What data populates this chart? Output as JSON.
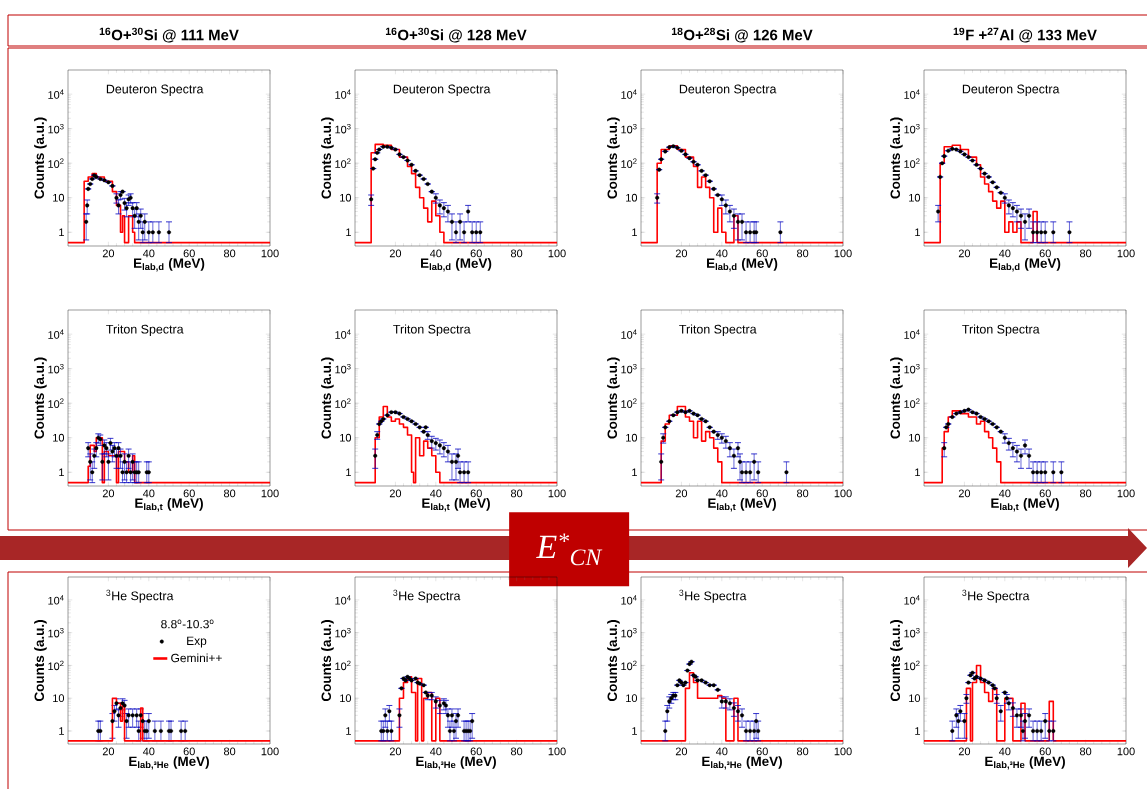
{
  "chart_data": [
    {
      "type": "scatter",
      "title": "$^{16}$O+$^{30}$Si @ 111 MeV",
      "subtitle": "Deuteron Spectra",
      "xlabel": "E$_{lab,d}$ (MeV)",
      "ylabel": "Counts (a.u.)",
      "log": "y",
      "xlim": [
        0,
        100
      ],
      "ylim": [
        0.4,
        50000
      ],
      "xticks": [
        20,
        40,
        60,
        80,
        100
      ],
      "yticks": [
        1,
        10,
        {
          "value": 100,
          "label": "10$^{2}$"
        },
        {
          "value": 1000,
          "label": "10$^{3}$"
        },
        {
          "value": 10000,
          "label": "10$^{4}$"
        }
      ],
      "series": [
        {
          "type": "step",
          "marker": "none",
          "color": "#ff0000",
          "x": [
            0,
            8,
            10,
            12,
            14,
            18,
            22,
            24,
            26,
            27,
            28,
            30,
            32,
            33,
            100
          ],
          "values": [
            0.5,
            30,
            40,
            50,
            40,
            30,
            15,
            6,
            1,
            3,
            0.5,
            3,
            1,
            0.5,
            0.5
          ]
        },
        {
          "type": "scatter",
          "marker": "circle",
          "color": "#000000",
          "x": [
            9,
            9.5,
            10,
            11,
            12,
            13,
            14,
            16,
            18,
            20,
            22,
            24,
            25,
            26,
            27,
            28,
            29,
            30,
            31,
            32,
            33,
            34,
            35,
            36,
            37,
            38,
            40,
            42,
            45,
            50
          ],
          "values": [
            2,
            6,
            18,
            25,
            35,
            45,
            40,
            35,
            32,
            28,
            22,
            10,
            6,
            12,
            15,
            7,
            5,
            9,
            10,
            5,
            3,
            5,
            2,
            3,
            1,
            2,
            1,
            1,
            1,
            1
          ],
          "errors": [
            1.4,
            2.6,
            null,
            null,
            null,
            null,
            null,
            null,
            null,
            null,
            null,
            3,
            2.6,
            3,
            null,
            2.6,
            2.2,
            3,
            3,
            2.2,
            1.7,
            2.2,
            1.4,
            1.7,
            [
              0.5,
              2
            ],
            1.4,
            [
              0.5,
              2
            ],
            [
              0.5,
              2
            ],
            [
              0.5,
              2
            ],
            [
              0.5,
              2
            ]
          ]
        }
      ]
    },
    {
      "type": "scatter",
      "title": "$^{16}$O+$^{30}$Si @ 128 MeV",
      "subtitle": "Deuteron Spectra",
      "xlabel": "E$_{lab,d}$ (MeV)",
      "ylabel": "Counts (a.u.)",
      "log": "y",
      "xlim": [
        0,
        100
      ],
      "ylim": [
        0.4,
        50000
      ],
      "xticks": [
        20,
        40,
        60,
        80,
        100
      ],
      "yticks": [
        1,
        10,
        {
          "value": 100,
          "label": "10$^{2}$"
        },
        {
          "value": 1000,
          "label": "10$^{3}$"
        },
        {
          "value": 10000,
          "label": "10$^{4}$"
        }
      ],
      "series": [
        {
          "type": "step",
          "marker": "none",
          "color": "#ff0000",
          "x": [
            0,
            8,
            10,
            14,
            18,
            22,
            26,
            28,
            30,
            32,
            34,
            36,
            38,
            40,
            42,
            44,
            100
          ],
          "values": [
            0.5,
            200,
            350,
            330,
            250,
            150,
            80,
            50,
            20,
            10,
            5,
            2,
            8,
            3,
            1,
            0.5,
            0.5
          ]
        },
        {
          "type": "scatter",
          "marker": "circle",
          "color": "#000000",
          "x": [
            8,
            9,
            10,
            11,
            12,
            14,
            16,
            18,
            20,
            22,
            24,
            26,
            28,
            30,
            32,
            34,
            36,
            38,
            40,
            42,
            44,
            46,
            48,
            50,
            52,
            54,
            56,
            58,
            60,
            62
          ],
          "values": [
            9,
            70,
            130,
            200,
            250,
            300,
            300,
            280,
            250,
            180,
            150,
            120,
            90,
            60,
            45,
            35,
            25,
            15,
            10,
            6,
            5,
            4,
            2,
            1,
            2,
            1,
            4,
            1,
            1,
            1
          ],
          "errors": [
            3,
            null,
            null,
            null,
            null,
            null,
            null,
            null,
            null,
            null,
            null,
            null,
            null,
            null,
            null,
            null,
            null,
            null,
            3,
            2.6,
            2.2,
            2,
            1.4,
            [
              0.5,
              2
            ],
            1.4,
            [
              0.5,
              2
            ],
            2,
            [
              0.5,
              2
            ],
            [
              0.5,
              2
            ],
            [
              0.5,
              2
            ]
          ]
        }
      ]
    },
    {
      "type": "scatter",
      "title": "$^{18}$O+$^{28}$Si @ 126 MeV",
      "subtitle": "Deuteron Spectra",
      "xlabel": "E$_{lab,d}$ (MeV)",
      "ylabel": "Counts (a.u.)",
      "log": "y",
      "xlim": [
        0,
        100
      ],
      "ylim": [
        0.4,
        50000
      ],
      "xticks": [
        20,
        40,
        60,
        80,
        100
      ],
      "yticks": [
        1,
        10,
        {
          "value": 100,
          "label": "10$^{2}$"
        },
        {
          "value": 1000,
          "label": "10$^{3}$"
        },
        {
          "value": 10000,
          "label": "10$^{4}$"
        }
      ],
      "series": [
        {
          "type": "step",
          "marker": "none",
          "color": "#ff0000",
          "x": [
            0,
            8,
            10,
            14,
            18,
            22,
            26,
            28,
            30,
            32,
            34,
            36,
            38,
            40,
            42,
            46,
            48,
            100
          ],
          "values": [
            0.5,
            100,
            250,
            320,
            250,
            150,
            80,
            20,
            40,
            20,
            10,
            1,
            5,
            1,
            0.5,
            3,
            0.5,
            0.5
          ]
        },
        {
          "type": "scatter",
          "marker": "circle",
          "color": "#000000",
          "x": [
            8,
            9,
            10,
            12,
            14,
            16,
            18,
            20,
            22,
            24,
            26,
            28,
            30,
            32,
            34,
            36,
            38,
            40,
            42,
            44,
            46,
            48,
            50,
            52,
            54,
            56,
            57,
            69
          ],
          "values": [
            10,
            65,
            130,
            220,
            290,
            310,
            280,
            230,
            180,
            140,
            110,
            90,
            60,
            45,
            30,
            18,
            12,
            9,
            6,
            4,
            3,
            2,
            2,
            1,
            1,
            1,
            1,
            1
          ],
          "errors": [
            3,
            null,
            null,
            null,
            null,
            null,
            null,
            null,
            null,
            null,
            null,
            null,
            null,
            null,
            null,
            null,
            null,
            3,
            2.6,
            2,
            1.7,
            1.4,
            1.4,
            [
              0.5,
              2
            ],
            [
              0.5,
              2
            ],
            [
              0.5,
              2
            ],
            [
              0.5,
              2
            ],
            [
              0.5,
              2
            ]
          ]
        }
      ]
    },
    {
      "type": "scatter",
      "title": "$^{19}$F +$^{27}$Al @ 133 MeV",
      "subtitle": "Deuteron Spectra",
      "xlabel": "E$_{lab,d}$ (MeV)",
      "ylabel": "Counts (a.u.)",
      "log": "y",
      "xlim": [
        0,
        100
      ],
      "ylim": [
        0.4,
        50000
      ],
      "xticks": [
        20,
        40,
        60,
        80,
        100
      ],
      "yticks": [
        1,
        10,
        {
          "value": 100,
          "label": "10$^{2}$"
        },
        {
          "value": 1000,
          "label": "10$^{3}$"
        },
        {
          "value": 10000,
          "label": "10$^{4}$"
        }
      ],
      "series": [
        {
          "type": "step",
          "marker": "none",
          "color": "#ff0000",
          "x": [
            0,
            8,
            10,
            14,
            18,
            22,
            26,
            28,
            30,
            32,
            34,
            36,
            38,
            40,
            42,
            44,
            46,
            48,
            54,
            56,
            100
          ],
          "values": [
            0.5,
            100,
            300,
            330,
            250,
            150,
            90,
            40,
            25,
            15,
            8,
            5,
            8,
            1,
            2,
            1,
            2,
            0.5,
            4,
            0.5,
            0.5
          ]
        },
        {
          "type": "scatter",
          "marker": "circle",
          "color": "#000000",
          "x": [
            7,
            8,
            9,
            10,
            12,
            14,
            16,
            18,
            20,
            22,
            24,
            26,
            28,
            30,
            32,
            34,
            36,
            38,
            40,
            42,
            44,
            46,
            48,
            50,
            52,
            54,
            56,
            58,
            60,
            64,
            72
          ],
          "values": [
            4,
            40,
            100,
            160,
            230,
            260,
            250,
            220,
            180,
            150,
            120,
            90,
            70,
            50,
            40,
            28,
            20,
            14,
            10,
            6,
            5,
            4,
            3,
            2,
            3,
            1,
            1,
            1,
            1,
            1,
            1
          ],
          "errors": [
            2,
            null,
            null,
            null,
            null,
            null,
            null,
            null,
            null,
            null,
            null,
            null,
            null,
            null,
            null,
            null,
            null,
            null,
            3,
            2.6,
            2.2,
            2,
            1.7,
            1.4,
            1.7,
            [
              0.5,
              2
            ],
            [
              0.5,
              2
            ],
            [
              0.5,
              2
            ],
            [
              0.5,
              2
            ],
            [
              0.5,
              2
            ],
            [
              0.5,
              2
            ]
          ]
        }
      ]
    },
    {
      "type": "scatter",
      "subtitle": "Triton Spectra",
      "xlabel": "E$_{lab,t}$ (MeV)",
      "ylabel": "Counts (a.u.)",
      "log": "y",
      "xlim": [
        0,
        100
      ],
      "ylim": [
        0.4,
        50000
      ],
      "xticks": [
        20,
        40,
        60,
        80,
        100
      ],
      "yticks": [
        1,
        10,
        {
          "value": 100,
          "label": "10$^{2}$"
        },
        {
          "value": 1000,
          "label": "10$^{3}$"
        },
        {
          "value": 10000,
          "label": "10$^{4}$"
        }
      ],
      "series": [
        {
          "type": "step",
          "marker": "none",
          "color": "#ff0000",
          "x": [
            0,
            10,
            11,
            13,
            14,
            17,
            18,
            20,
            24,
            25,
            28,
            30,
            32,
            33,
            100
          ],
          "values": [
            0.5,
            1.5,
            6,
            4,
            10,
            0.5,
            4,
            3,
            0.5,
            4,
            2,
            1,
            3,
            0.5,
            0.5
          ]
        },
        {
          "type": "scatter",
          "marker": "circle",
          "color": "#000000",
          "x": [
            10,
            11,
            12,
            13,
            14,
            15,
            16,
            17,
            18,
            19,
            20,
            21,
            22,
            23,
            24,
            25,
            26,
            27,
            28,
            29,
            30,
            31,
            32,
            33,
            34,
            35,
            39,
            40
          ],
          "values": [
            5,
            2,
            1,
            3,
            5,
            10,
            9,
            2,
            6,
            5,
            2,
            7,
            4,
            5,
            3,
            5,
            3,
            1,
            2,
            1,
            3,
            1,
            2,
            1,
            1,
            1,
            1,
            1
          ],
          "errors": [
            2.2,
            1.4,
            [
              0.5,
              2
            ],
            1.7,
            2.2,
            3,
            3,
            1.4,
            2.6,
            2.2,
            1.4,
            2.6,
            2,
            2.2,
            1.7,
            2.2,
            1.7,
            [
              0.5,
              2
            ],
            1.4,
            [
              0.5,
              2
            ],
            1.7,
            [
              0.5,
              2
            ],
            1.4,
            [
              0.5,
              2
            ],
            [
              0.5,
              2
            ],
            [
              0.5,
              2
            ],
            [
              0.5,
              2
            ],
            [
              0.5,
              2
            ]
          ]
        }
      ]
    },
    {
      "type": "scatter",
      "subtitle": "Triton Spectra",
      "xlabel": "E$_{lab,t}$ (MeV)",
      "ylabel": "Counts (a.u.)",
      "log": "y",
      "xlim": [
        0,
        100
      ],
      "ylim": [
        0.4,
        50000
      ],
      "xticks": [
        20,
        40,
        60,
        80,
        100
      ],
      "yticks": [
        1,
        10,
        {
          "value": 100,
          "label": "10$^{2}$"
        },
        {
          "value": 1000,
          "label": "10$^{3}$"
        },
        {
          "value": 10000,
          "label": "10$^{4}$"
        }
      ],
      "annotations": [
        "E$^{*}$$_{CN}$"
      ],
      "series": [
        {
          "type": "step",
          "marker": "none",
          "color": "#ff0000",
          "x": [
            0,
            10,
            12,
            14,
            16,
            18,
            20,
            22,
            24,
            26,
            28,
            29,
            30,
            32,
            34,
            36,
            38,
            40,
            42,
            100
          ],
          "values": [
            0.5,
            10,
            40,
            80,
            40,
            30,
            35,
            25,
            20,
            12,
            1,
            0.5,
            10,
            3,
            8,
            5,
            3,
            1,
            0.5,
            0.5
          ]
        },
        {
          "type": "scatter",
          "marker": "circle",
          "color": "#000000",
          "x": [
            10,
            11,
            12,
            13,
            14,
            16,
            18,
            20,
            22,
            24,
            26,
            28,
            30,
            32,
            34,
            35,
            36,
            38,
            40,
            42,
            44,
            46,
            48,
            50,
            51,
            52,
            54,
            56
          ],
          "values": [
            3,
            12,
            25,
            30,
            35,
            45,
            55,
            55,
            50,
            40,
            35,
            30,
            25,
            20,
            15,
            20,
            12,
            8,
            7,
            6,
            5,
            4,
            2,
            2,
            3,
            1,
            1,
            1
          ],
          "errors": [
            1.7,
            3,
            null,
            null,
            null,
            null,
            null,
            null,
            null,
            null,
            null,
            null,
            null,
            null,
            null,
            null,
            3,
            3,
            2.6,
            2.6,
            2.2,
            2,
            1.4,
            1.4,
            1.7,
            [
              0.5,
              2
            ],
            [
              0.5,
              2
            ],
            [
              0.5,
              2
            ]
          ]
        }
      ]
    },
    {
      "type": "scatter",
      "subtitle": "Triton Spectra",
      "xlabel": "E$_{lab,t}$ (MeV)",
      "ylabel": "Counts (a.u.)",
      "log": "y",
      "xlim": [
        0,
        100
      ],
      "ylim": [
        0.4,
        50000
      ],
      "xticks": [
        20,
        40,
        60,
        80,
        100
      ],
      "yticks": [
        1,
        10,
        {
          "value": 100,
          "label": "10$^{2}$"
        },
        {
          "value": 1000,
          "label": "10$^{3}$"
        },
        {
          "value": 10000,
          "label": "10$^{4}$"
        }
      ],
      "series": [
        {
          "type": "step",
          "marker": "none",
          "color": "#ff0000",
          "x": [
            0,
            10,
            12,
            14,
            18,
            22,
            24,
            26,
            28,
            30,
            32,
            34,
            36,
            38,
            40,
            100
          ],
          "values": [
            0.5,
            8,
            25,
            45,
            80,
            40,
            30,
            10,
            30,
            8,
            15,
            10,
            5,
            2,
            0.5,
            0.5
          ]
        },
        {
          "type": "scatter",
          "marker": "circle",
          "color": "#000000",
          "x": [
            10,
            11,
            12,
            14,
            16,
            18,
            20,
            22,
            24,
            26,
            28,
            30,
            32,
            34,
            36,
            38,
            40,
            42,
            44,
            46,
            48,
            49,
            50,
            52,
            54,
            56,
            58,
            72
          ],
          "values": [
            2,
            10,
            20,
            30,
            45,
            55,
            60,
            55,
            60,
            50,
            45,
            35,
            30,
            20,
            15,
            12,
            10,
            8,
            5,
            3,
            5,
            2,
            1,
            1,
            1,
            2,
            1,
            1
          ],
          "errors": [
            1.4,
            3,
            null,
            null,
            null,
            null,
            null,
            null,
            null,
            null,
            null,
            null,
            null,
            null,
            null,
            3,
            3,
            3,
            2.2,
            1.7,
            2.2,
            1.4,
            [
              0.5,
              2
            ],
            [
              0.5,
              2
            ],
            [
              0.5,
              2
            ],
            1.4,
            [
              0.5,
              2
            ],
            [
              0.5,
              2
            ]
          ]
        }
      ]
    },
    {
      "type": "scatter",
      "subtitle": "Triton Spectra",
      "xlabel": "E$_{lab,t}$ (MeV)",
      "ylabel": "Counts (a.u.)",
      "log": "y",
      "xlim": [
        0,
        100
      ],
      "ylim": [
        0.4,
        50000
      ],
      "xticks": [
        20,
        40,
        60,
        80,
        100
      ],
      "yticks": [
        1,
        10,
        {
          "value": 100,
          "label": "10$^{2}$"
        },
        {
          "value": 1000,
          "label": "10$^{3}$"
        },
        {
          "value": 10000,
          "label": "10$^{4}$"
        }
      ],
      "series": [
        {
          "type": "step",
          "marker": "none",
          "color": "#ff0000",
          "x": [
            0,
            9,
            10,
            12,
            14,
            18,
            22,
            26,
            28,
            30,
            32,
            34,
            36,
            38,
            100
          ],
          "values": [
            0.5,
            5,
            15,
            40,
            60,
            50,
            40,
            25,
            30,
            15,
            10,
            5,
            2,
            0.5,
            0.5
          ]
        },
        {
          "type": "scatter",
          "marker": "circle",
          "color": "#000000",
          "x": [
            10,
            11,
            12,
            14,
            16,
            18,
            20,
            22,
            24,
            26,
            28,
            30,
            32,
            34,
            36,
            38,
            40,
            42,
            44,
            46,
            48,
            50,
            52,
            54,
            56,
            58,
            60,
            64,
            68
          ],
          "values": [
            5,
            20,
            25,
            40,
            50,
            55,
            60,
            65,
            55,
            50,
            40,
            35,
            30,
            25,
            20,
            15,
            10,
            7,
            5,
            4,
            3,
            6,
            3,
            1,
            1,
            1,
            1,
            1,
            1
          ],
          "errors": [
            2.2,
            null,
            null,
            null,
            null,
            null,
            null,
            null,
            null,
            null,
            null,
            null,
            null,
            null,
            null,
            null,
            3,
            2.6,
            2.2,
            2,
            1.7,
            2.6,
            1.7,
            [
              0.5,
              2
            ],
            [
              0.5,
              2
            ],
            [
              0.5,
              2
            ],
            [
              0.5,
              2
            ],
            [
              0.5,
              2
            ],
            [
              0.5,
              2
            ]
          ]
        }
      ]
    },
    {
      "type": "scatter",
      "subtitle": "$^{3}$He Spectra",
      "xlabel": "E$_{lab,³He}$ (MeV)",
      "ylabel": "Counts (a.u.)",
      "log": "y",
      "legend": "top",
      "legend_title": "8.8$^{o}$-10.3$^{o}$",
      "xlim": [
        0,
        100
      ],
      "ylim": [
        0.4,
        50000
      ],
      "xticks": [
        20,
        40,
        60,
        80,
        100
      ],
      "yticks": [
        1,
        10,
        {
          "value": 100,
          "label": "10$^{2}$"
        },
        {
          "value": 1000,
          "label": "10$^{3}$"
        },
        {
          "value": 10000,
          "label": "10$^{4}$"
        }
      ],
      "series": [
        {
          "type": "scatter",
          "marker": "circle",
          "name": "Exp",
          "color": "#000000",
          "x": [
            15,
            16,
            22,
            23,
            24,
            25,
            26,
            27,
            28,
            29,
            30,
            32,
            34,
            35,
            36,
            37,
            38,
            39,
            40,
            43,
            46,
            50,
            51,
            56,
            58
          ],
          "values": [
            1,
            1,
            2,
            4,
            7,
            3,
            5,
            7,
            6,
            2,
            3,
            3,
            3,
            1,
            3,
            2,
            1,
            1,
            2,
            1,
            1,
            1,
            1,
            1,
            1
          ],
          "errors": [
            [
              0.5,
              2
            ],
            [
              0.5,
              2
            ],
            1.4,
            2,
            2.6,
            1.7,
            2.2,
            2.6,
            2.6,
            1.4,
            1.7,
            1.7,
            1.7,
            [
              0.5,
              2
            ],
            1.7,
            1.4,
            [
              0.5,
              2
            ],
            [
              0.5,
              2
            ],
            1.4,
            [
              0.5,
              2
            ],
            [
              0.5,
              2
            ],
            [
              0.5,
              2
            ],
            [
              0.5,
              2
            ],
            [
              0.5,
              2
            ],
            [
              0.5,
              2
            ]
          ]
        },
        {
          "type": "step",
          "marker": "none",
          "name": "Gemini++",
          "color": "#ff0000",
          "x": [
            0,
            22,
            24,
            26,
            27,
            28,
            36,
            37,
            100
          ],
          "values": [
            0.5,
            10,
            7,
            2,
            6,
            0.5,
            5,
            0.5,
            0.5
          ]
        }
      ]
    },
    {
      "type": "scatter",
      "subtitle": "$^{3}$He Spectra",
      "xlabel": "E$_{lab,³He}$ (MeV)",
      "ylabel": "Counts (a.u.)",
      "log": "y",
      "xlim": [
        0,
        100
      ],
      "ylim": [
        0.4,
        50000
      ],
      "xticks": [
        20,
        40,
        60,
        80,
        100
      ],
      "yticks": [
        1,
        10,
        {
          "value": 100,
          "label": "10$^{2}$"
        },
        {
          "value": 1000,
          "label": "10$^{3}$"
        },
        {
          "value": 10000,
          "label": "10$^{4}$"
        }
      ],
      "series": [
        {
          "type": "step",
          "marker": "none",
          "color": "#ff0000",
          "x": [
            0,
            22,
            24,
            26,
            28,
            30,
            31,
            33,
            34,
            36,
            38,
            40,
            42,
            100
          ],
          "values": [
            0.5,
            10,
            30,
            45,
            15,
            0.5,
            40,
            0.5,
            10,
            15,
            0.5,
            10,
            0.5,
            0.5
          ]
        },
        {
          "type": "scatter",
          "marker": "circle",
          "color": "#000000",
          "x": [
            13,
            14,
            15,
            16,
            17,
            18,
            22,
            23,
            24,
            25,
            26,
            27,
            28,
            30,
            31,
            32,
            34,
            35,
            36,
            38,
            40,
            42,
            44,
            45,
            46,
            47,
            48,
            49,
            50,
            51,
            54,
            55,
            56,
            57,
            58
          ],
          "values": [
            1,
            1,
            3,
            1,
            4,
            1,
            3,
            20,
            40,
            35,
            45,
            40,
            35,
            40,
            30,
            28,
            25,
            15,
            12,
            12,
            8,
            6,
            7,
            6,
            3,
            1,
            3,
            1,
            2,
            3,
            1,
            1,
            1,
            1,
            2
          ],
          "errors": [
            [
              0.5,
              2
            ],
            [
              0.5,
              2
            ],
            1.7,
            [
              0.5,
              2
            ],
            2,
            [
              0.5,
              2
            ],
            1.7,
            null,
            null,
            null,
            null,
            null,
            null,
            null,
            null,
            null,
            null,
            null,
            3,
            3,
            3,
            2.6,
            2.6,
            2.6,
            1.7,
            [
              0.5,
              2
            ],
            1.7,
            [
              0.5,
              2
            ],
            1.4,
            1.7,
            [
              0.5,
              2
            ],
            [
              0.5,
              2
            ],
            [
              0.5,
              2
            ],
            [
              0.5,
              2
            ],
            1.4
          ]
        }
      ]
    },
    {
      "type": "scatter",
      "subtitle": "$^{3}$He Spectra",
      "xlabel": "E$_{lab,³He}$ (MeV)",
      "ylabel": "Counts (a.u.)",
      "log": "y",
      "xlim": [
        0,
        100
      ],
      "ylim": [
        0.4,
        50000
      ],
      "xticks": [
        20,
        40,
        60,
        80,
        100
      ],
      "yticks": [
        1,
        10,
        {
          "value": 100,
          "label": "10$^{2}$"
        },
        {
          "value": 1000,
          "label": "10$^{3}$"
        },
        {
          "value": 10000,
          "label": "10$^{4}$"
        }
      ],
      "series": [
        {
          "type": "step",
          "marker": "none",
          "color": "#ff0000",
          "x": [
            0,
            22,
            24,
            26,
            28,
            30,
            34,
            38,
            40,
            42,
            46,
            48,
            100
          ],
          "values": [
            0.5,
            20,
            60,
            30,
            10,
            10,
            10,
            12,
            10,
            0.5,
            10,
            0.5,
            0.5
          ]
        },
        {
          "type": "scatter",
          "marker": "circle",
          "color": "#000000",
          "x": [
            12,
            13,
            14,
            15,
            16,
            17,
            18,
            19,
            20,
            21,
            22,
            23,
            24,
            25,
            26,
            27,
            28,
            30,
            32,
            34,
            36,
            38,
            40,
            42,
            44,
            46,
            48,
            50,
            52,
            54,
            56,
            57,
            58
          ],
          "values": [
            1,
            4,
            8,
            10,
            12,
            12,
            25,
            35,
            30,
            25,
            30,
            70,
            110,
            130,
            50,
            45,
            35,
            35,
            30,
            25,
            25,
            18,
            8,
            8,
            7,
            5,
            4,
            3,
            1,
            1,
            1,
            2,
            1
          ],
          "errors": [
            [
              0.5,
              2
            ],
            2,
            3,
            3,
            3,
            3,
            null,
            null,
            null,
            null,
            null,
            null,
            null,
            null,
            null,
            null,
            null,
            null,
            null,
            null,
            null,
            null,
            3,
            3,
            2.6,
            2.2,
            2,
            1.7,
            [
              0.5,
              2
            ],
            [
              0.5,
              2
            ],
            [
              0.5,
              2
            ],
            1.4,
            [
              0.5,
              2
            ]
          ]
        }
      ]
    },
    {
      "type": "scatter",
      "subtitle": "$^{3}$He Spectra",
      "xlabel": "E$_{lab,³He}$ (MeV)",
      "ylabel": "Counts (a.u.)",
      "log": "y",
      "xlim": [
        0,
        100
      ],
      "ylim": [
        0.4,
        50000
      ],
      "xticks": [
        20,
        40,
        60,
        80,
        100
      ],
      "yticks": [
        1,
        10,
        {
          "value": 100,
          "label": "10$^{2}$"
        },
        {
          "value": 1000,
          "label": "10$^{3}$"
        },
        {
          "value": 10000,
          "label": "10$^{4}$"
        }
      ],
      "series": [
        {
          "type": "step",
          "marker": "none",
          "color": "#ff0000",
          "x": [
            0,
            21,
            23,
            24,
            26,
            28,
            30,
            32,
            34,
            36,
            40,
            42,
            44,
            48,
            50,
            62,
            64,
            100
          ],
          "values": [
            0.5,
            20,
            0.5,
            30,
            100,
            30,
            15,
            8,
            20,
            0.5,
            10,
            10,
            0.5,
            7,
            0.5,
            8,
            0.5,
            0.5
          ]
        },
        {
          "type": "scatter",
          "marker": "circle",
          "color": "#000000",
          "x": [
            14,
            16,
            17,
            18,
            20,
            21,
            22,
            23,
            24,
            25,
            26,
            28,
            30,
            32,
            34,
            35,
            36,
            38,
            40,
            41,
            42,
            44,
            46,
            48,
            49,
            50,
            52,
            54,
            56,
            58,
            60,
            62,
            64
          ],
          "values": [
            1,
            3,
            2,
            4,
            2,
            10,
            30,
            50,
            60,
            40,
            45,
            40,
            35,
            30,
            25,
            20,
            10,
            4,
            15,
            10,
            7,
            5,
            3,
            3,
            1,
            2,
            3,
            1,
            1,
            1,
            2,
            1,
            1
          ],
          "errors": [
            [
              0.5,
              2
            ],
            1.7,
            1.4,
            2,
            1.4,
            3,
            null,
            null,
            null,
            null,
            null,
            null,
            null,
            null,
            null,
            null,
            3,
            2,
            null,
            3,
            2.6,
            2.2,
            1.7,
            1.7,
            [
              0.5,
              2
            ],
            1.4,
            1.7,
            [
              0.5,
              2
            ],
            [
              0.5,
              2
            ],
            [
              0.5,
              2
            ],
            1.4,
            [
              0.5,
              2
            ],
            [
              0.5,
              2
            ]
          ]
        }
      ]
    }
  ]
}
